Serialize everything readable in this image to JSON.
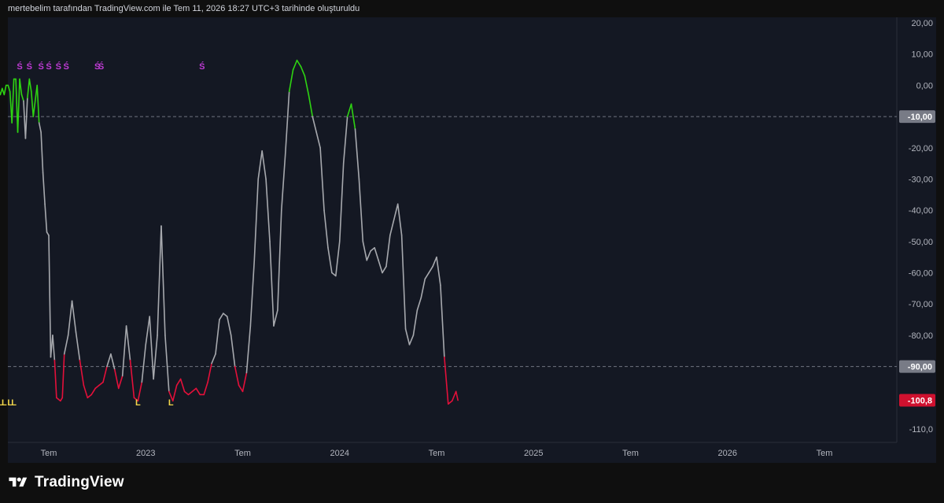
{
  "header": {
    "text": "mertebelim tarafından TradingView.com ile Tem 11, 2026 18:27 UTC+3 tarihinde oluşturuldu"
  },
  "brand": {
    "name": "TradingView",
    "logo_icon": "tradingview-logo-icon"
  },
  "colors": {
    "background": "#0f0f0f",
    "plot_bg": "#141823",
    "line_neutral": "#a7a9ae",
    "line_high": "#2ed412",
    "line_low": "#e4103a",
    "marker_s": "#c03bd6",
    "marker_l": "#f2d64b",
    "badge_gray": "#787b86",
    "badge_red": "#d0112f"
  },
  "chart_data": {
    "type": "line",
    "title": "",
    "xlabel": "",
    "ylabel": "",
    "ylim": [
      -114,
      23
    ],
    "x_ticks": [
      {
        "label": "Tem",
        "t": 2022.5
      },
      {
        "label": "2023",
        "t": 2023.0
      },
      {
        "label": "Tem",
        "t": 2023.5
      },
      {
        "label": "2024",
        "t": 2024.0
      },
      {
        "label": "Tem",
        "t": 2024.5
      },
      {
        "label": "2025",
        "t": 2025.0
      },
      {
        "label": "Tem",
        "t": 2025.5
      },
      {
        "label": "2026",
        "t": 2026.0
      },
      {
        "label": "Tem",
        "t": 2026.5
      }
    ],
    "y_ticks": [
      {
        "label": "20,00",
        "v": 20
      },
      {
        "label": "10,00",
        "v": 10
      },
      {
        "label": "0,00",
        "v": 0
      },
      {
        "label": "-20,00",
        "v": -20
      },
      {
        "label": "-30,00",
        "v": -30
      },
      {
        "label": "-40,00",
        "v": -40
      },
      {
        "label": "-50,00",
        "v": -50
      },
      {
        "label": "-60,00",
        "v": -60
      },
      {
        "label": "-70,00",
        "v": -70
      },
      {
        "label": "-80,00",
        "v": -80
      },
      {
        "label": "-110,0",
        "v": -110
      }
    ],
    "levels": [
      {
        "value": -10,
        "label": "-10,00",
        "badge": "gray"
      },
      {
        "value": -90,
        "label": "-90,00",
        "badge": "gray"
      }
    ],
    "last_value": {
      "value": -100.8,
      "label": "-100,8",
      "badge": "red"
    },
    "thresholds": {
      "upper": -10,
      "lower": -90
    },
    "series": [
      {
        "points": [
          [
            2022.2,
            -10
          ],
          [
            2022.21,
            -3
          ],
          [
            2022.22,
            2
          ],
          [
            2022.23,
            1.5
          ],
          [
            2022.24,
            -1
          ],
          [
            2022.25,
            -3
          ],
          [
            2022.26,
            -1
          ],
          [
            2022.27,
            -3
          ],
          [
            2022.28,
            0
          ],
          [
            2022.29,
            0
          ],
          [
            2022.3,
            -2
          ],
          [
            2022.31,
            -12
          ],
          [
            2022.32,
            2
          ],
          [
            2022.33,
            2
          ],
          [
            2022.34,
            -15
          ],
          [
            2022.35,
            2
          ],
          [
            2022.36,
            -3
          ],
          [
            2022.37,
            -5
          ],
          [
            2022.38,
            -17
          ],
          [
            2022.39,
            -4
          ],
          [
            2022.4,
            2
          ],
          [
            2022.41,
            -2
          ],
          [
            2022.42,
            -10
          ],
          [
            2022.43,
            -5
          ],
          [
            2022.44,
            0
          ],
          [
            2022.45,
            -12
          ],
          [
            2022.46,
            -15
          ],
          [
            2022.47,
            -28
          ],
          [
            2022.48,
            -38
          ],
          [
            2022.49,
            -47
          ],
          [
            2022.5,
            -48
          ],
          [
            2022.51,
            -87
          ],
          [
            2022.52,
            -80
          ],
          [
            2022.53,
            -88
          ],
          [
            2022.54,
            -100
          ],
          [
            2022.56,
            -101
          ],
          [
            2022.57,
            -100
          ],
          [
            2022.58,
            -86
          ],
          [
            2022.6,
            -80
          ],
          [
            2022.62,
            -69
          ],
          [
            2022.64,
            -79
          ],
          [
            2022.66,
            -88
          ],
          [
            2022.68,
            -96
          ],
          [
            2022.7,
            -100
          ],
          [
            2022.72,
            -99
          ],
          [
            2022.74,
            -97
          ],
          [
            2022.76,
            -96
          ],
          [
            2022.78,
            -95
          ],
          [
            2022.8,
            -90
          ],
          [
            2022.82,
            -86
          ],
          [
            2022.84,
            -91
          ],
          [
            2022.86,
            -97
          ],
          [
            2022.88,
            -93
          ],
          [
            2022.9,
            -77
          ],
          [
            2022.92,
            -88
          ],
          [
            2022.94,
            -100
          ],
          [
            2022.96,
            -101
          ],
          [
            2022.98,
            -95
          ],
          [
            2023.0,
            -83
          ],
          [
            2023.02,
            -74
          ],
          [
            2023.04,
            -94
          ],
          [
            2023.06,
            -80
          ],
          [
            2023.08,
            -45
          ],
          [
            2023.1,
            -80
          ],
          [
            2023.12,
            -98
          ],
          [
            2023.14,
            -101
          ],
          [
            2023.16,
            -96
          ],
          [
            2023.18,
            -94
          ],
          [
            2023.2,
            -98
          ],
          [
            2023.22,
            -99
          ],
          [
            2023.24,
            -98
          ],
          [
            2023.26,
            -97
          ],
          [
            2023.28,
            -99
          ],
          [
            2023.3,
            -99
          ],
          [
            2023.32,
            -95
          ],
          [
            2023.34,
            -89
          ],
          [
            2023.36,
            -86
          ],
          [
            2023.38,
            -75
          ],
          [
            2023.4,
            -73
          ],
          [
            2023.42,
            -74
          ],
          [
            2023.44,
            -80
          ],
          [
            2023.46,
            -90
          ],
          [
            2023.48,
            -96
          ],
          [
            2023.5,
            -98
          ],
          [
            2023.52,
            -92
          ],
          [
            2023.54,
            -77
          ],
          [
            2023.56,
            -56
          ],
          [
            2023.58,
            -30
          ],
          [
            2023.6,
            -21
          ],
          [
            2023.62,
            -30
          ],
          [
            2023.64,
            -50
          ],
          [
            2023.66,
            -77
          ],
          [
            2023.68,
            -72
          ],
          [
            2023.7,
            -40
          ],
          [
            2023.72,
            -22
          ],
          [
            2023.74,
            -2
          ],
          [
            2023.76,
            5
          ],
          [
            2023.78,
            8
          ],
          [
            2023.8,
            6
          ],
          [
            2023.82,
            3
          ],
          [
            2023.84,
            -3
          ],
          [
            2023.86,
            -10
          ],
          [
            2023.88,
            -15
          ],
          [
            2023.9,
            -20
          ],
          [
            2023.92,
            -40
          ],
          [
            2023.94,
            -52
          ],
          [
            2023.96,
            -60
          ],
          [
            2023.98,
            -61
          ],
          [
            2024.0,
            -50
          ],
          [
            2024.02,
            -25
          ],
          [
            2024.04,
            -10
          ],
          [
            2024.06,
            -6
          ],
          [
            2024.08,
            -14
          ],
          [
            2024.1,
            -30
          ],
          [
            2024.12,
            -50
          ],
          [
            2024.14,
            -56
          ],
          [
            2024.16,
            -53
          ],
          [
            2024.18,
            -52
          ],
          [
            2024.2,
            -56
          ],
          [
            2024.22,
            -60
          ],
          [
            2024.24,
            -58
          ],
          [
            2024.26,
            -48
          ],
          [
            2024.28,
            -43
          ],
          [
            2024.3,
            -38
          ],
          [
            2024.32,
            -48
          ],
          [
            2024.34,
            -78
          ],
          [
            2024.36,
            -83
          ],
          [
            2024.38,
            -80
          ],
          [
            2024.4,
            -72
          ],
          [
            2024.42,
            -68
          ],
          [
            2024.44,
            -62
          ],
          [
            2024.46,
            -60
          ],
          [
            2024.48,
            -58
          ],
          [
            2024.5,
            -55
          ],
          [
            2024.52,
            -64
          ],
          [
            2024.54,
            -87
          ],
          [
            2024.56,
            -102
          ],
          [
            2024.58,
            -101
          ],
          [
            2024.6,
            -98
          ],
          [
            2024.61,
            -100.8
          ]
        ]
      }
    ],
    "s_markers": [
      2022.35,
      2022.4,
      2022.46,
      2022.5,
      2022.55,
      2022.59,
      2022.75,
      2022.77,
      2023.29
    ],
    "l_markers": [
      2022.21,
      2022.25,
      2022.27,
      2022.3,
      2022.32,
      2022.96,
      2023.13
    ],
    "s_marker_label": "Ś",
    "l_marker_label": "L"
  }
}
